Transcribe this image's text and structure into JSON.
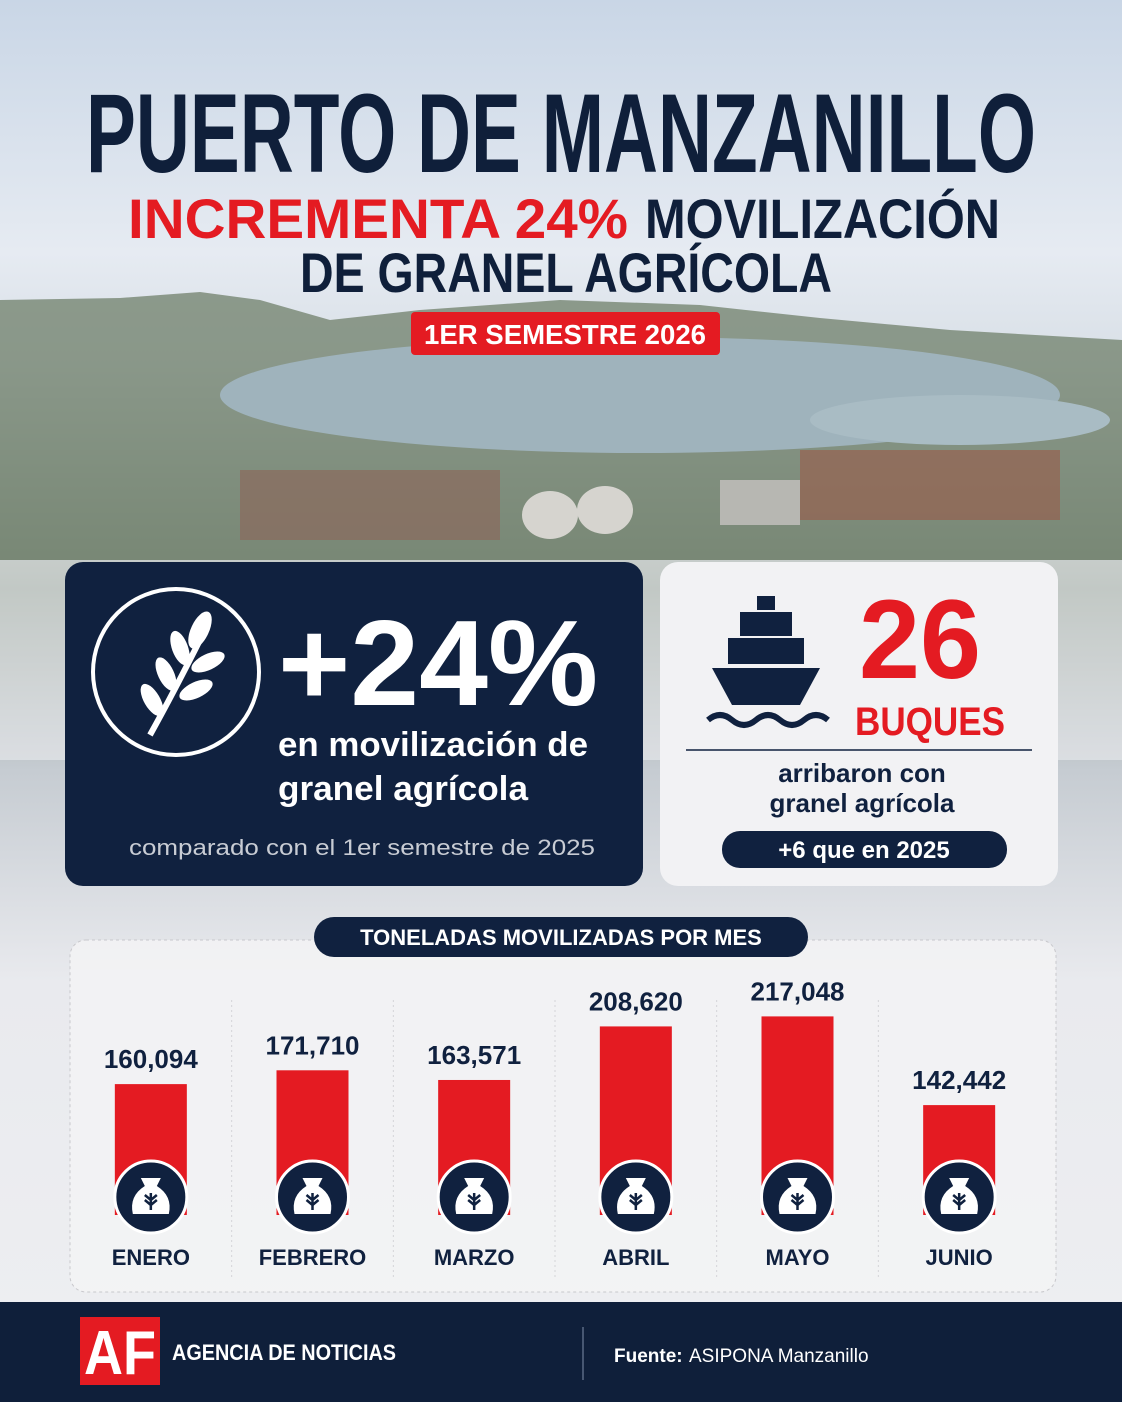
{
  "header": {
    "title": "PUERTO DE MANZANILLO",
    "subtitle_highlight": "INCREMENTA 24%",
    "subtitle_rest": "MOVILIZACIÓN",
    "subtitle_line2": "DE GRANEL AGRÍCOLA",
    "badge": "1ER SEMESTRE 2026"
  },
  "stat_left": {
    "value": "+24%",
    "line1": "en movilización de",
    "line2": "granel agrícola",
    "note": "comparado con el 1er semestre de 2025"
  },
  "stat_right": {
    "value": "26",
    "unit": "BUQUES",
    "line1": "arribaron con",
    "line2": "granel agrícola",
    "badge": "+6 que en 2025"
  },
  "chart_data": {
    "type": "bar",
    "title": "TONELADAS MOVILIZADAS POR MES",
    "categories": [
      "ENERO",
      "FEBRERO",
      "MARZO",
      "ABRIL",
      "MAYO",
      "JUNIO"
    ],
    "values": [
      160094,
      171710,
      163571,
      208620,
      217048,
      142442
    ],
    "value_labels": [
      "160,094",
      "171,710",
      "163,571",
      "208,620",
      "217,048",
      "142,442"
    ],
    "color": "#e41b22",
    "ylim": [
      50000,
      230000
    ]
  },
  "footer": {
    "logo": "AF",
    "agency": "AGENCIA DE NOTICIAS",
    "source_label": "Fuente:",
    "source": "ASIPONA Manzanillo"
  }
}
